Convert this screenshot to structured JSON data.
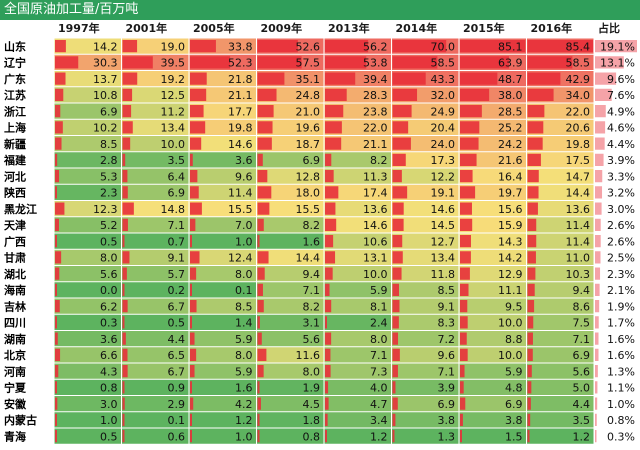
{
  "title": "全国原油加工量/百万吨",
  "colors": {
    "title_bar": "#2f9e5a",
    "bar": "#e8303a",
    "share_bar": "#f5a3a8",
    "scale_low": "#5db35f",
    "scale_mid": "#f7e07a",
    "scale_high": "#ee6a60"
  },
  "chart_data": {
    "type": "table",
    "title": "全国原油加工量/百万吨",
    "columns": [
      "1997年",
      "2001年",
      "2005年",
      "2009年",
      "2013年",
      "2014年",
      "2015年",
      "2016年"
    ],
    "share_header": "占比",
    "rows": [
      {
        "name": "山东",
        "values": [
          14.2,
          19.0,
          33.8,
          52.6,
          56.2,
          70.0,
          85.1,
          85.4
        ],
        "share": "19.1%"
      },
      {
        "name": "辽宁",
        "values": [
          30.3,
          39.5,
          52.3,
          57.5,
          53.8,
          58.5,
          63.9,
          58.5
        ],
        "share": "13.1%"
      },
      {
        "name": "广东",
        "values": [
          13.7,
          19.2,
          21.8,
          35.1,
          39.4,
          43.3,
          48.7,
          42.9
        ],
        "share": "9.6%"
      },
      {
        "name": "江苏",
        "values": [
          10.8,
          12.5,
          21.1,
          24.8,
          28.3,
          32.0,
          38.0,
          34.0
        ],
        "share": "7.6%"
      },
      {
        "name": "浙江",
        "values": [
          6.9,
          11.2,
          17.7,
          21.0,
          23.8,
          24.9,
          28.5,
          22.0
        ],
        "share": "4.9%"
      },
      {
        "name": "上海",
        "values": [
          10.2,
          13.4,
          19.8,
          19.6,
          22.0,
          20.4,
          25.2,
          20.6
        ],
        "share": "4.6%"
      },
      {
        "name": "新疆",
        "values": [
          8.5,
          10.0,
          14.6,
          18.7,
          21.1,
          24.0,
          24.2,
          19.8
        ],
        "share": "4.4%"
      },
      {
        "name": "福建",
        "values": [
          2.8,
          3.5,
          3.6,
          6.9,
          8.2,
          17.3,
          21.6,
          17.5
        ],
        "share": "3.9%"
      },
      {
        "name": "河北",
        "values": [
          5.3,
          6.4,
          9.6,
          12.8,
          11.3,
          12.2,
          16.4,
          14.7
        ],
        "share": "3.3%"
      },
      {
        "name": "陕西",
        "values": [
          2.3,
          6.9,
          11.4,
          18.0,
          17.4,
          19.1,
          19.7,
          14.4
        ],
        "share": "3.2%"
      },
      {
        "name": "黑龙江",
        "values": [
          12.3,
          14.8,
          15.5,
          15.5,
          13.6,
          14.6,
          15.6,
          13.6
        ],
        "share": "3.0%"
      },
      {
        "name": "天津",
        "values": [
          5.2,
          7.1,
          7.0,
          8.2,
          14.6,
          14.5,
          15.9,
          11.4
        ],
        "share": "2.6%"
      },
      {
        "name": "广西",
        "values": [
          0.5,
          0.7,
          1.0,
          1.6,
          10.6,
          12.7,
          14.3,
          11.4
        ],
        "share": "2.6%"
      },
      {
        "name": "甘肃",
        "values": [
          8.0,
          9.1,
          12.4,
          14.4,
          13.1,
          13.4,
          14.2,
          11.0
        ],
        "share": "2.5%"
      },
      {
        "name": "湖北",
        "values": [
          5.6,
          5.7,
          8.0,
          9.4,
          10.0,
          11.8,
          12.9,
          10.3
        ],
        "share": "2.3%"
      },
      {
        "name": "海南",
        "values": [
          0.0,
          0.2,
          0.1,
          7.1,
          5.9,
          8.5,
          11.1,
          9.4
        ],
        "share": "2.1%"
      },
      {
        "name": "吉林",
        "values": [
          6.2,
          6.7,
          8.5,
          8.2,
          8.1,
          9.1,
          9.5,
          8.6
        ],
        "share": "1.9%"
      },
      {
        "name": "四川",
        "values": [
          0.3,
          0.5,
          1.4,
          3.1,
          2.4,
          8.3,
          10.0,
          7.5
        ],
        "share": "1.7%"
      },
      {
        "name": "湖南",
        "values": [
          3.6,
          4.4,
          5.9,
          5.6,
          8.0,
          7.2,
          8.8,
          7.1
        ],
        "share": "1.6%"
      },
      {
        "name": "北京",
        "values": [
          6.6,
          6.5,
          8.0,
          11.6,
          7.1,
          9.6,
          10.0,
          6.9
        ],
        "share": "1.6%"
      },
      {
        "name": "河南",
        "values": [
          4.3,
          6.7,
          5.9,
          8.0,
          7.3,
          7.1,
          5.9,
          5.6
        ],
        "share": "1.3%"
      },
      {
        "name": "宁夏",
        "values": [
          0.8,
          0.9,
          1.6,
          1.9,
          4.0,
          3.9,
          4.8,
          5.0
        ],
        "share": "1.1%"
      },
      {
        "name": "安徽",
        "values": [
          3.0,
          2.9,
          4.2,
          4.5,
          4.7,
          6.9,
          6.9,
          4.4
        ],
        "share": "1.0%"
      },
      {
        "name": "内蒙古",
        "values": [
          1.0,
          0.1,
          1.2,
          1.8,
          3.4,
          3.8,
          3.8,
          3.5
        ],
        "share": "0.8%"
      },
      {
        "name": "青海",
        "values": [
          0.5,
          0.6,
          1.0,
          0.8,
          1.2,
          1.3,
          1.5,
          1.2
        ],
        "share": "0.3%"
      }
    ],
    "value_range": [
      0,
      85.4
    ]
  }
}
